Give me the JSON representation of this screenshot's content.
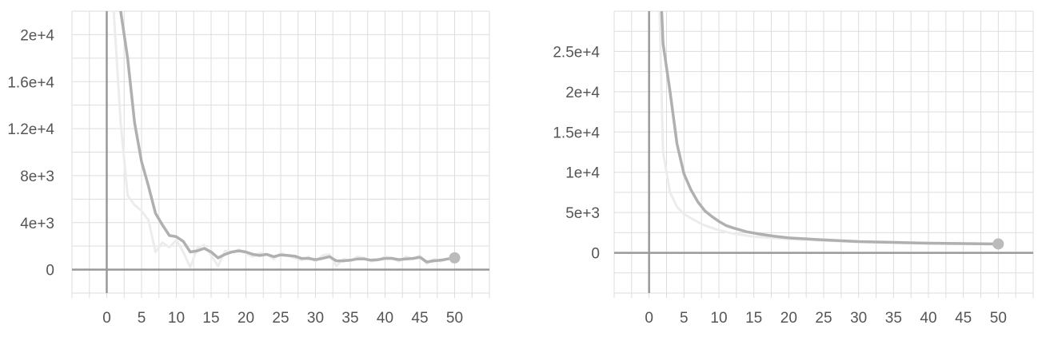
{
  "chart_data": [
    {
      "type": "line",
      "title": "",
      "xlabel": "",
      "ylabel": "",
      "xlim": [
        -5,
        55
      ],
      "ylim": [
        -2000,
        22000
      ],
      "x_ticks": [
        0,
        5,
        10,
        15,
        20,
        25,
        30,
        35,
        40,
        45,
        50
      ],
      "x_tick_labels": [
        "0",
        "5",
        "10",
        "15",
        "20",
        "25",
        "30",
        "35",
        "40",
        "45",
        "50"
      ],
      "y_ticks": [
        0,
        4000,
        8000,
        12000,
        16000,
        20000
      ],
      "y_tick_labels": [
        "0",
        "4e+3",
        "8e+3",
        "1.2e+4",
        "1.6e+4",
        "2e+4"
      ],
      "grid": true,
      "colors": {
        "smoothed": "#b0b0b0",
        "raw": "#ececec",
        "axis": "#999999",
        "grid": "#dddddd",
        "endpoint": "#bbbbbb"
      },
      "series": [
        {
          "role": "raw",
          "x": [
            1,
            2,
            3,
            4,
            5,
            6,
            7,
            8,
            9,
            10,
            11,
            12,
            13,
            14,
            15,
            16,
            17,
            18,
            19,
            20,
            21,
            22,
            23,
            24,
            25,
            26,
            27,
            28,
            29,
            30,
            31,
            32,
            33,
            34,
            35,
            36,
            37,
            38,
            39,
            40,
            41,
            42,
            43,
            44,
            45,
            46,
            47,
            48,
            49,
            50
          ],
          "y": [
            22000,
            12500,
            6300,
            5500,
            5000,
            4200,
            1500,
            2300,
            1900,
            2500,
            1500,
            200,
            1800,
            2100,
            1200,
            300,
            1600,
            1500,
            1700,
            1400,
            1100,
            1400,
            1300,
            900,
            1400,
            1200,
            1000,
            800,
            1100,
            700,
            1200,
            1300,
            300,
            900,
            700,
            1100,
            1000,
            700,
            800,
            1100,
            1000,
            700,
            1100,
            900,
            1200,
            500,
            900,
            700,
            900,
            1000
          ]
        },
        {
          "role": "smoothed",
          "x": [
            1,
            2,
            3,
            4,
            5,
            6,
            7,
            8,
            9,
            10,
            11,
            12,
            13,
            14,
            15,
            16,
            17,
            18,
            19,
            20,
            21,
            22,
            23,
            24,
            25,
            26,
            27,
            28,
            29,
            30,
            31,
            32,
            33,
            34,
            35,
            36,
            37,
            38,
            39,
            40,
            41,
            42,
            43,
            44,
            45,
            46,
            47,
            48,
            49,
            50
          ],
          "y": [
            30000,
            22000,
            18000,
            12500,
            9200,
            7100,
            4800,
            3800,
            2900,
            2800,
            2400,
            1500,
            1600,
            1800,
            1500,
            1000,
            1300,
            1500,
            1600,
            1500,
            1300,
            1200,
            1300,
            1100,
            1250,
            1200,
            1150,
            950,
            950,
            850,
            950,
            1100,
            750,
            750,
            800,
            900,
            900,
            800,
            850,
            950,
            950,
            850,
            900,
            950,
            1050,
            650,
            750,
            800,
            900,
            1000
          ]
        }
      ]
    },
    {
      "type": "line",
      "title": "",
      "xlabel": "",
      "ylabel": "",
      "xlim": [
        -5,
        55
      ],
      "ylim": [
        -5000,
        30000
      ],
      "x_ticks": [
        0,
        5,
        10,
        15,
        20,
        25,
        30,
        35,
        40,
        45,
        50
      ],
      "x_tick_labels": [
        "0",
        "5",
        "10",
        "15",
        "20",
        "25",
        "30",
        "35",
        "40",
        "45",
        "50"
      ],
      "y_ticks": [
        0,
        5000,
        10000,
        15000,
        20000,
        25000
      ],
      "y_tick_labels": [
        "0",
        "5e+3",
        "1e+4",
        "1.5e+4",
        "2e+4",
        "2.5e+4"
      ],
      "grid": true,
      "colors": {
        "smoothed": "#b0b0b0",
        "raw": "#ececec",
        "axis": "#999999",
        "grid": "#dddddd",
        "endpoint": "#bbbbbb"
      },
      "series": [
        {
          "role": "raw",
          "x": [
            1.5,
            2,
            3,
            4,
            5,
            6,
            7,
            8,
            9,
            10,
            12,
            15,
            20,
            25,
            30,
            35,
            40,
            45,
            50
          ],
          "y": [
            30000,
            12500,
            7500,
            5700,
            4800,
            4300,
            3800,
            3400,
            3100,
            2800,
            2400,
            2000,
            1700,
            1500,
            1350,
            1250,
            1150,
            1100,
            1050
          ]
        },
        {
          "role": "smoothed",
          "x": [
            1.8,
            2,
            3,
            4,
            5,
            6,
            7,
            8,
            9,
            10,
            11,
            12,
            14,
            16,
            18,
            20,
            25,
            30,
            35,
            40,
            45,
            50
          ],
          "y": [
            30000,
            26000,
            20000,
            13500,
            9800,
            7800,
            6300,
            5200,
            4500,
            3900,
            3400,
            3100,
            2600,
            2300,
            2050,
            1850,
            1600,
            1400,
            1300,
            1200,
            1150,
            1100
          ]
        }
      ]
    }
  ]
}
